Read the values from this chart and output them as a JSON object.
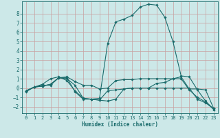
{
  "xlabel": "Humidex (Indice chaleur)",
  "background_color": "#cce8e8",
  "grid_color": "#c8a0a0",
  "line_color": "#1a6b6b",
  "xlim": [
    -0.5,
    23.5
  ],
  "ylim": [
    -2.7,
    9.3
  ],
  "yticks": [
    -2,
    -1,
    0,
    1,
    2,
    3,
    4,
    5,
    6,
    7,
    8
  ],
  "xticks": [
    0,
    1,
    2,
    3,
    4,
    5,
    6,
    7,
    8,
    9,
    10,
    11,
    12,
    13,
    14,
    15,
    16,
    17,
    18,
    19,
    20,
    21,
    22,
    23
  ],
  "series": [
    {
      "x": [
        0,
        1,
        2,
        3,
        4,
        5,
        6,
        7,
        8,
        9,
        10,
        11,
        12,
        13,
        14,
        15,
        16,
        17,
        18,
        19,
        20,
        21,
        22,
        23
      ],
      "y": [
        -0.3,
        0.1,
        0.2,
        0.4,
        1.1,
        1.2,
        0.7,
        0.3,
        0.3,
        -0.1,
        0.0,
        0.8,
        0.9,
        0.9,
        1.0,
        1.0,
        1.0,
        1.0,
        1.0,
        1.2,
        -0.1,
        -0.1,
        -0.2,
        -2.2
      ]
    },
    {
      "x": [
        0,
        1,
        2,
        3,
        4,
        5,
        6,
        7,
        8,
        9,
        10,
        11,
        12,
        13,
        14,
        15,
        16,
        17,
        18,
        19,
        20,
        21,
        22,
        23
      ],
      "y": [
        -0.3,
        0.1,
        0.3,
        0.3,
        1.1,
        1.1,
        -0.4,
        -1.2,
        -1.2,
        -1.3,
        -1.4,
        -1.2,
        -0.1,
        0.0,
        0.0,
        0.0,
        0.0,
        0.0,
        0.0,
        0.0,
        0.0,
        -1.2,
        -1.6,
        -2.2
      ]
    },
    {
      "x": [
        0,
        1,
        2,
        3,
        4,
        5,
        6,
        7,
        8,
        9,
        10,
        11,
        12,
        13,
        14,
        15,
        16,
        17,
        18,
        19,
        20,
        21,
        22,
        23
      ],
      "y": [
        -0.3,
        0.1,
        0.2,
        0.4,
        1.1,
        1.0,
        0.3,
        -1.1,
        -1.2,
        -1.3,
        -0.3,
        -0.2,
        -0.1,
        0.0,
        0.0,
        0.0,
        0.5,
        0.6,
        1.0,
        1.0,
        -0.2,
        -1.0,
        -1.5,
        -2.3
      ]
    },
    {
      "x": [
        0,
        1,
        2,
        3,
        4,
        5,
        6,
        7,
        8,
        9,
        10,
        11,
        12,
        13,
        14,
        15,
        16,
        17,
        18,
        19,
        20,
        21,
        22,
        23
      ],
      "y": [
        -0.4,
        0.1,
        0.4,
        1.0,
        1.2,
        0.8,
        -0.3,
        -1.1,
        -1.2,
        -1.1,
        4.8,
        7.1,
        7.4,
        7.8,
        8.7,
        9.0,
        8.9,
        7.6,
        5.0,
        1.3,
        1.2,
        -0.2,
        -1.4,
        -2.3
      ]
    }
  ]
}
